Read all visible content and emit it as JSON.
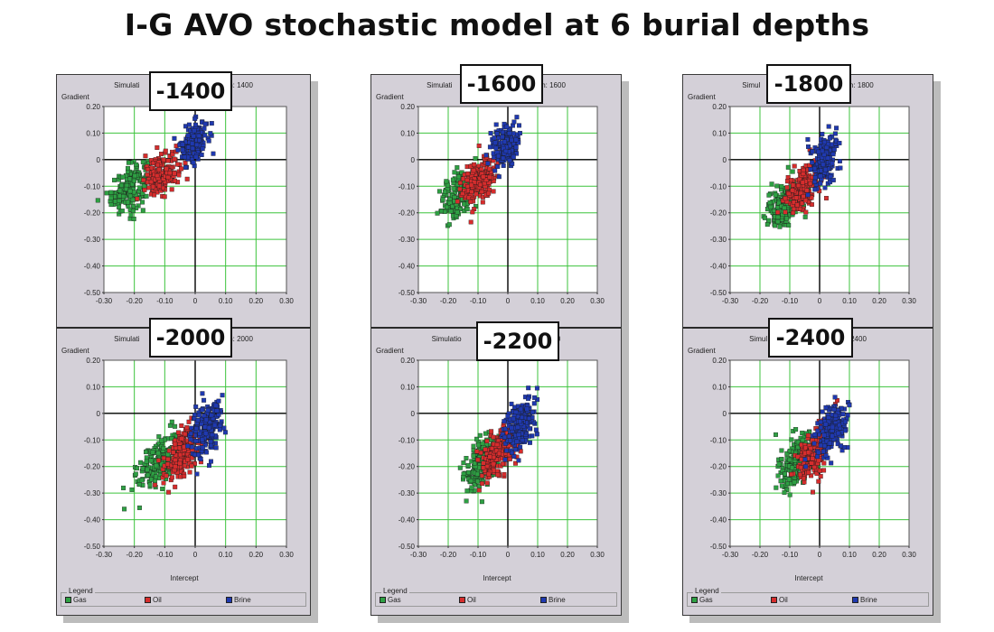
{
  "title": "I-G AVO stochastic model at 6 burial depths",
  "colors": {
    "gas": "#2ea043",
    "oil": "#d62d2d",
    "brine": "#1f39b0",
    "grid": "#3cc33c",
    "axis": "#000000"
  },
  "columns": [
    {
      "x_axis_label": "Intercept",
      "legend": {
        "title": "Legend",
        "items": [
          {
            "label": "Gas",
            "key": "gas"
          },
          {
            "label": "Oil",
            "key": "oil"
          },
          {
            "label": "Brine",
            "key": "brine"
          }
        ]
      },
      "panels": [
        {
          "depth_label": "-1400",
          "sim_title_left": "Simulati",
          "sim_title_right": "pth: 1400",
          "y_axis_label": "Gradient"
        },
        {
          "depth_label": "-2000",
          "sim_title_left": "Simulati",
          "sim_title_right": "pth: 2000",
          "y_axis_label": "Gradient"
        }
      ]
    },
    {
      "x_axis_label": "Intercept",
      "legend": {
        "title": "Legend",
        "items": [
          {
            "label": "Gas",
            "key": "gas"
          },
          {
            "label": "Oil",
            "key": "oil"
          },
          {
            "label": "Brine",
            "key": "brine"
          }
        ]
      },
      "panels": [
        {
          "depth_label": "-1600",
          "sim_title_left": "Simulati",
          "sim_title_right": "pth: 1600",
          "y_axis_label": "Gradient"
        },
        {
          "depth_label": "-2200",
          "sim_title_left": "Simulatio",
          "sim_title_right": "2200",
          "y_axis_label": "Gradient"
        }
      ]
    },
    {
      "x_axis_label": "Intercept",
      "legend": {
        "title": "Legend",
        "items": [
          {
            "label": "Gas",
            "key": "gas"
          },
          {
            "label": "Oil",
            "key": "oil"
          },
          {
            "label": "Brine",
            "key": "brine"
          }
        ]
      },
      "panels": [
        {
          "depth_label": "-1800",
          "sim_title_left": "Simul",
          "sim_title_right": "pth: 1800",
          "y_axis_label": "Gradient"
        },
        {
          "depth_label": "-2400",
          "sim_title_left": "Simul",
          "sim_title_right": "2400",
          "y_axis_label": "Gradient"
        }
      ]
    }
  ],
  "chart_data": [
    {
      "type": "scatter",
      "depth": -1400,
      "xlabel": "",
      "ylabel": "Gradient",
      "xlim": [
        -0.3,
        0.3
      ],
      "ylim": [
        -0.5,
        0.2
      ],
      "x_ticks": [
        "-0.30",
        "-0.20",
        "-0.10",
        "0",
        "0.10",
        "0.20",
        "0.30"
      ],
      "y_ticks": [
        "0.20",
        "0.10",
        "0",
        "-0.10",
        "-0.20",
        "-0.30",
        "-0.40",
        "-0.50"
      ],
      "grid": true,
      "series": [
        {
          "name": "Gas",
          "key": "gas",
          "points": 190,
          "cx": -0.215,
          "cy": -0.105,
          "sx": 0.03,
          "sy": 0.045,
          "rho": 0.4
        },
        {
          "name": "Oil",
          "key": "oil",
          "points": 190,
          "cx": -0.11,
          "cy": -0.055,
          "sx": 0.028,
          "sy": 0.04,
          "rho": 0.4
        },
        {
          "name": "Brine",
          "key": "brine",
          "points": 190,
          "cx": -0.005,
          "cy": 0.065,
          "sx": 0.022,
          "sy": 0.038,
          "rho": 0.3
        }
      ]
    },
    {
      "type": "scatter",
      "depth": -2000,
      "xlabel": "Intercept",
      "ylabel": "Gradient",
      "xlim": [
        -0.3,
        0.3
      ],
      "ylim": [
        -0.5,
        0.2
      ],
      "x_ticks": [
        "-0.30",
        "-0.20",
        "-0.10",
        "0",
        "0.10",
        "0.20",
        "0.30"
      ],
      "y_ticks": [
        "0.20",
        "0.10",
        "0",
        "-0.10",
        "-0.20",
        "-0.30",
        "-0.40",
        "-0.50"
      ],
      "grid": true,
      "series": [
        {
          "name": "Gas",
          "key": "gas",
          "points": 200,
          "cx": -0.12,
          "cy": -0.18,
          "sx": 0.035,
          "sy": 0.05,
          "rho": 0.5
        },
        {
          "name": "Oil",
          "key": "oil",
          "points": 200,
          "cx": -0.04,
          "cy": -0.15,
          "sx": 0.03,
          "sy": 0.05,
          "rho": 0.5
        },
        {
          "name": "Brine",
          "key": "brine",
          "points": 200,
          "cx": 0.035,
          "cy": -0.06,
          "sx": 0.025,
          "sy": 0.05,
          "rho": 0.4
        }
      ]
    },
    {
      "type": "scatter",
      "depth": -1600,
      "xlabel": "",
      "ylabel": "Gradient",
      "xlim": [
        -0.3,
        0.3
      ],
      "ylim": [
        -0.5,
        0.2
      ],
      "x_ticks": [
        "-0.30",
        "-0.20",
        "-0.10",
        "0",
        "0.10",
        "0.20",
        "0.30"
      ],
      "y_ticks": [
        "0.20",
        "0.10",
        "0",
        "-0.10",
        "-0.20",
        "-0.30",
        "-0.40",
        "-0.50"
      ],
      "grid": true,
      "series": [
        {
          "name": "Gas",
          "key": "gas",
          "points": 190,
          "cx": -0.165,
          "cy": -0.135,
          "sx": 0.03,
          "sy": 0.045,
          "rho": 0.4
        },
        {
          "name": "Oil",
          "key": "oil",
          "points": 190,
          "cx": -0.095,
          "cy": -0.08,
          "sx": 0.028,
          "sy": 0.045,
          "rho": 0.4
        },
        {
          "name": "Brine",
          "key": "brine",
          "points": 190,
          "cx": -0.01,
          "cy": 0.05,
          "sx": 0.022,
          "sy": 0.04,
          "rho": 0.3
        }
      ]
    },
    {
      "type": "scatter",
      "depth": -2200,
      "xlabel": "Intercept",
      "ylabel": "Gradient",
      "xlim": [
        -0.3,
        0.3
      ],
      "ylim": [
        -0.5,
        0.2
      ],
      "x_ticks": [
        "-0.30",
        "-0.20",
        "-0.10",
        "0",
        "0.10",
        "0.20",
        "0.30"
      ],
      "y_ticks": [
        "0.20",
        "0.10",
        "0",
        "-0.10",
        "-0.20",
        "-0.30",
        "-0.40",
        "-0.50"
      ],
      "grid": true,
      "series": [
        {
          "name": "Gas",
          "key": "gas",
          "points": 200,
          "cx": -0.09,
          "cy": -0.19,
          "sx": 0.03,
          "sy": 0.05,
          "rho": 0.5
        },
        {
          "name": "Oil",
          "key": "oil",
          "points": 200,
          "cx": -0.03,
          "cy": -0.15,
          "sx": 0.03,
          "sy": 0.05,
          "rho": 0.5
        },
        {
          "name": "Brine",
          "key": "brine",
          "points": 200,
          "cx": 0.04,
          "cy": -0.05,
          "sx": 0.025,
          "sy": 0.05,
          "rho": 0.4
        }
      ]
    },
    {
      "type": "scatter",
      "depth": -1800,
      "xlabel": "",
      "ylabel": "Gradient",
      "xlim": [
        -0.3,
        0.3
      ],
      "ylim": [
        -0.5,
        0.2
      ],
      "x_ticks": [
        "-0.30",
        "-0.20",
        "-0.10",
        "0",
        "0.10",
        "0.20",
        "0.30"
      ],
      "y_ticks": [
        "0.20",
        "0.10",
        "0",
        "-0.10",
        "-0.20",
        "-0.30",
        "-0.40",
        "-0.50"
      ],
      "grid": true,
      "series": [
        {
          "name": "Gas",
          "key": "gas",
          "points": 190,
          "cx": -0.12,
          "cy": -0.17,
          "sx": 0.03,
          "sy": 0.045,
          "rho": 0.4
        },
        {
          "name": "Oil",
          "key": "oil",
          "points": 190,
          "cx": -0.06,
          "cy": -0.11,
          "sx": 0.028,
          "sy": 0.045,
          "rho": 0.4
        },
        {
          "name": "Brine",
          "key": "brine",
          "points": 190,
          "cx": 0.015,
          "cy": 0.0,
          "sx": 0.022,
          "sy": 0.045,
          "rho": 0.3
        }
      ]
    },
    {
      "type": "scatter",
      "depth": -2400,
      "xlabel": "Intercept",
      "ylabel": "Gradient",
      "xlim": [
        -0.3,
        0.3
      ],
      "ylim": [
        -0.5,
        0.2
      ],
      "x_ticks": [
        "-0.30",
        "-0.20",
        "-0.10",
        "0",
        "0.10",
        "0.20",
        "0.30"
      ],
      "y_ticks": [
        "0.20",
        "0.10",
        "0",
        "-0.10",
        "-0.20",
        "-0.30",
        "-0.40",
        "-0.50"
      ],
      "grid": true,
      "series": [
        {
          "name": "Gas",
          "key": "gas",
          "points": 200,
          "cx": -0.08,
          "cy": -0.18,
          "sx": 0.03,
          "sy": 0.05,
          "rho": 0.5
        },
        {
          "name": "Oil",
          "key": "oil",
          "points": 200,
          "cx": -0.02,
          "cy": -0.14,
          "sx": 0.028,
          "sy": 0.05,
          "rho": 0.5
        },
        {
          "name": "Brine",
          "key": "brine",
          "points": 200,
          "cx": 0.04,
          "cy": -0.06,
          "sx": 0.025,
          "sy": 0.05,
          "rho": 0.4
        }
      ]
    }
  ]
}
